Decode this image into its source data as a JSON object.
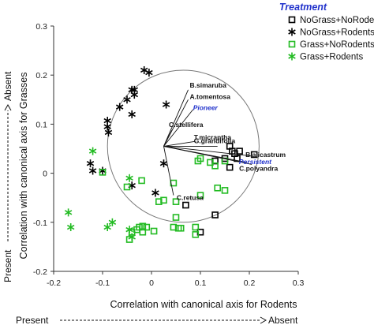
{
  "chart_data": {
    "type": "scatter",
    "title": "",
    "xlabel": "Correlation with canonical axis for Rodents",
    "ylabel": "Correlation with canonical axis for Grasses",
    "xlim": [
      -0.2,
      0.3
    ],
    "ylim": [
      -0.2,
      0.3
    ],
    "x_ticks": [
      "-0.2",
      "-0.1",
      "0",
      "0.1",
      "0.2",
      "0.3"
    ],
    "y_ticks": [
      "-0.2",
      "-0.1",
      "0",
      "0.1",
      "0.2",
      "0.3"
    ],
    "x_direction": {
      "left": "Present",
      "right": "Absent"
    },
    "y_direction": {
      "bottom": "Present",
      "top": "Absent"
    },
    "grid": false,
    "legend": {
      "title": "Treatment",
      "placement": "top-right",
      "entries": [
        "NoGrass+NoRodents",
        "NoGrass+Rodents",
        "Grass+NoRodents",
        "Grass+Rodents"
      ]
    },
    "circle": {
      "center": [
        0.065,
        0.055
      ],
      "radius": 0.155
    },
    "origin": [
      0.025,
      0.055
    ],
    "vectors": [
      {
        "label": "B.simaruba",
        "x": 0.075,
        "y": 0.17
      },
      {
        "label": "A.tomentosa",
        "x": 0.075,
        "y": 0.15
      },
      {
        "label": "Pioneer",
        "x": 0.085,
        "y": 0.13,
        "blue": true
      },
      {
        "label": "C.stellifera",
        "x": 0.042,
        "y": 0.088
      },
      {
        "label": "T.micrantha",
        "x": 0.09,
        "y": 0.065
      },
      {
        "label": "G.grandifolia",
        "x": 0.135,
        "y": 0.055
      },
      {
        "label": "B.alicastrum",
        "x": 0.205,
        "y": 0.035
      },
      {
        "label": "Persistent",
        "x": 0.195,
        "y": 0.022,
        "blue": true
      },
      {
        "label": "C.polyandra",
        "x": 0.205,
        "y": 0.018
      },
      {
        "label": "C.retusa",
        "x": 0.045,
        "y": -0.045
      }
    ],
    "series": [
      {
        "name": "NoGrass+NoRodents",
        "marker": "square-open",
        "color": "#000000",
        "points": [
          [
            0.16,
            0.055
          ],
          [
            0.165,
            0.045
          ],
          [
            0.17,
            0.04
          ],
          [
            0.18,
            0.045
          ],
          [
            0.175,
            0.03
          ],
          [
            0.15,
            0.03
          ],
          [
            0.13,
            0.025
          ],
          [
            0.21,
            0.038
          ],
          [
            0.16,
            0.012
          ],
          [
            0.07,
            -0.065
          ],
          [
            0.13,
            -0.085
          ],
          [
            0.1,
            -0.12
          ]
        ]
      },
      {
        "name": "NoGrass+Rodents",
        "marker": "asterisk",
        "color": "#000000",
        "points": [
          [
            -0.015,
            0.21
          ],
          [
            -0.005,
            0.205
          ],
          [
            -0.035,
            0.17
          ],
          [
            -0.035,
            0.16
          ],
          [
            -0.04,
            0.17
          ],
          [
            -0.05,
            0.15
          ],
          [
            -0.065,
            0.135
          ],
          [
            -0.04,
            0.12
          ],
          [
            -0.09,
            0.107
          ],
          [
            -0.09,
            0.095
          ],
          [
            -0.088,
            0.083
          ],
          [
            0.03,
            0.14
          ],
          [
            -0.125,
            0.02
          ],
          [
            -0.12,
            0.005
          ],
          [
            -0.1,
            0.005
          ],
          [
            0.025,
            0.02
          ],
          [
            -0.04,
            -0.025
          ],
          [
            0.008,
            -0.04
          ]
        ]
      },
      {
        "name": "Grass+NoRodents",
        "marker": "square-open",
        "color": "#22bb22",
        "points": [
          [
            0.1,
            0.03
          ],
          [
            0.095,
            0.025
          ],
          [
            0.12,
            0.022
          ],
          [
            0.13,
            0.015
          ],
          [
            0.15,
            0.025
          ],
          [
            0.135,
            -0.03
          ],
          [
            0.15,
            -0.035
          ],
          [
            0.1,
            -0.045
          ],
          [
            0.045,
            -0.02
          ],
          [
            -0.1,
            0.002
          ],
          [
            -0.05,
            -0.028
          ],
          [
            -0.02,
            -0.015
          ],
          [
            0.015,
            -0.058
          ],
          [
            0.025,
            -0.055
          ],
          [
            0.05,
            -0.058
          ],
          [
            -0.018,
            -0.108
          ],
          [
            -0.025,
            -0.11
          ],
          [
            -0.03,
            -0.115
          ],
          [
            -0.01,
            -0.11
          ],
          [
            0.005,
            -0.118
          ],
          [
            0.045,
            -0.11
          ],
          [
            0.055,
            -0.112
          ],
          [
            0.06,
            -0.112
          ],
          [
            0.05,
            -0.09
          ],
          [
            0.09,
            -0.11
          ],
          [
            0.09,
            -0.125
          ],
          [
            -0.018,
            -0.12
          ],
          [
            -0.04,
            -0.12
          ],
          [
            -0.045,
            -0.135
          ]
        ]
      },
      {
        "name": "Grass+Rodents",
        "marker": "asterisk",
        "color": "#22bb22",
        "points": [
          [
            -0.12,
            0.045
          ],
          [
            -0.045,
            -0.01
          ],
          [
            -0.17,
            -0.08
          ],
          [
            -0.165,
            -0.11
          ],
          [
            -0.08,
            -0.1
          ],
          [
            -0.09,
            -0.11
          ],
          [
            -0.045,
            -0.115
          ],
          [
            -0.04,
            -0.13
          ]
        ]
      }
    ]
  }
}
